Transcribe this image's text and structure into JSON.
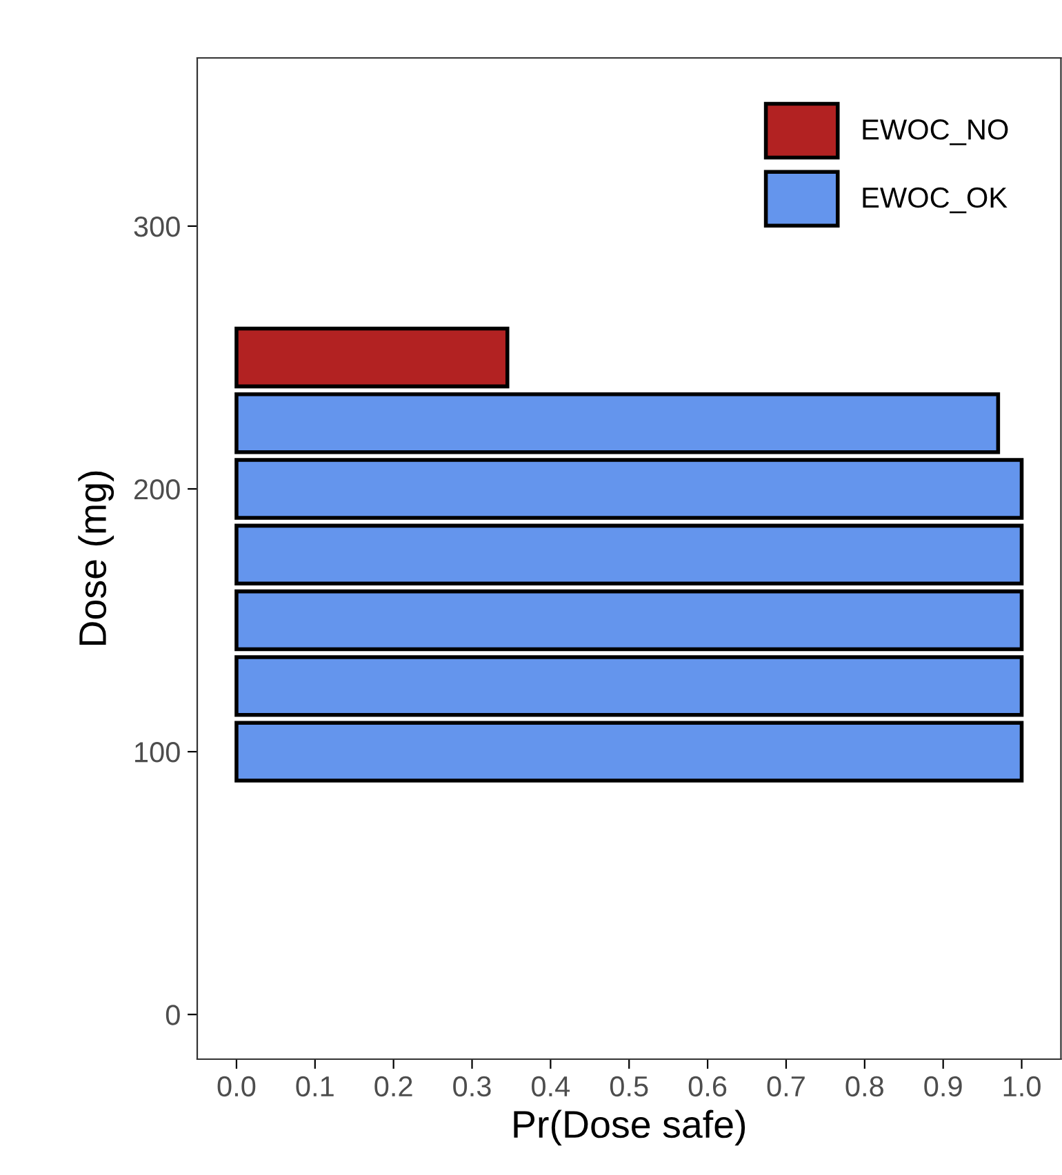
{
  "chart_data": {
    "type": "bar",
    "orientation": "horizontal",
    "xlabel": "Pr(Dose safe)",
    "ylabel": "Dose (mg)",
    "x": [
      100,
      125,
      150,
      175,
      200,
      225,
      250
    ],
    "series": [
      {
        "name": "EWOC_NO",
        "color": "#b22222",
        "values": [
          null,
          null,
          null,
          null,
          null,
          null,
          0.345
        ]
      },
      {
        "name": "EWOC_OK",
        "color": "#6495ed",
        "values": [
          1.0,
          1.0,
          1.0,
          1.0,
          1.0,
          0.97,
          null
        ]
      }
    ],
    "xlim": [
      -0.05,
      1.05
    ],
    "xticks": [
      {
        "value": 0,
        "label": "0.0"
      },
      0.1,
      0.2,
      0.3,
      0.4,
      0.5,
      0.6,
      0.7,
      0.8,
      0.9,
      {
        "value": 1,
        "label": "1.0"
      }
    ],
    "ylim": [
      -17,
      364
    ],
    "yticks": [
      0,
      100,
      200,
      300
    ],
    "grid": false,
    "legend": "top right"
  }
}
